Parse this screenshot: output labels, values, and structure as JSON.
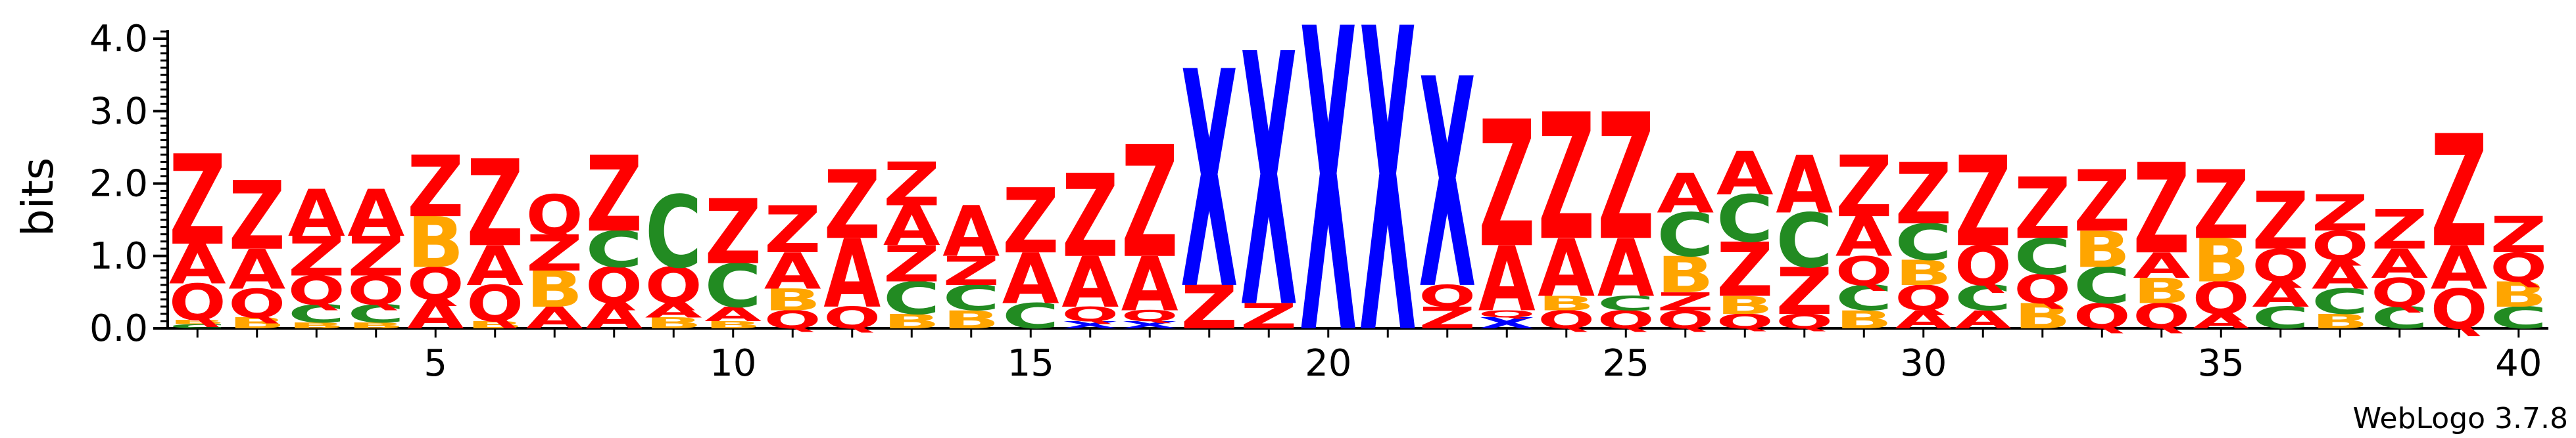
{
  "chart_data": {
    "type": "sequence-logo",
    "ylabel": "bits",
    "ylim": [
      0,
      4.1
    ],
    "yticks": [
      "0.0",
      "1.0",
      "2.0",
      "3.0",
      "4.0"
    ],
    "xticks": [
      "5",
      "10",
      "15",
      "20",
      "25",
      "30",
      "35",
      "40"
    ],
    "xlim": [
      1,
      40
    ],
    "grid": false,
    "colors": {
      "Z": "#ff0000",
      "A": "#ff0000",
      "Q": "#ff0000",
      "X": "#0000ff",
      "C": "#228b22",
      "B": "#ffa500"
    },
    "positions": [
      {
        "pos": 1,
        "stack": [
          [
            "C",
            0.06
          ],
          [
            "B",
            0.06
          ],
          [
            "Q",
            0.5
          ],
          [
            "A",
            0.55
          ],
          [
            "Z",
            1.25
          ]
        ]
      },
      {
        "pos": 2,
        "stack": [
          [
            "B",
            0.15
          ],
          [
            "Q",
            0.4
          ],
          [
            "A",
            0.55
          ],
          [
            "Z",
            0.95
          ]
        ]
      },
      {
        "pos": 3,
        "stack": [
          [
            "B",
            0.08
          ],
          [
            "C",
            0.25
          ],
          [
            "Q",
            0.4
          ],
          [
            "Z",
            0.55
          ],
          [
            "A",
            0.65
          ]
        ]
      },
      {
        "pos": 4,
        "stack": [
          [
            "B",
            0.08
          ],
          [
            "C",
            0.25
          ],
          [
            "Q",
            0.4
          ],
          [
            "Z",
            0.55
          ],
          [
            "A",
            0.65
          ]
        ]
      },
      {
        "pos": 5,
        "stack": [
          [
            "A",
            0.4
          ],
          [
            "Q",
            0.45
          ],
          [
            "B",
            0.7
          ],
          [
            "Z",
            0.85
          ]
        ]
      },
      {
        "pos": 6,
        "stack": [
          [
            "B",
            0.1
          ],
          [
            "Q",
            0.5
          ],
          [
            "A",
            0.55
          ],
          [
            "Z",
            1.2
          ]
        ]
      },
      {
        "pos": 7,
        "stack": [
          [
            "A",
            0.3
          ],
          [
            "B",
            0.5
          ],
          [
            "Z",
            0.5
          ],
          [
            "Q",
            0.55
          ]
        ]
      },
      {
        "pos": 8,
        "stack": [
          [
            "A",
            0.35
          ],
          [
            "Q",
            0.5
          ],
          [
            "C",
            0.5
          ],
          [
            "Z",
            1.05
          ]
        ]
      },
      {
        "pos": 9,
        "stack": [
          [
            "B",
            0.15
          ],
          [
            "A",
            0.2
          ],
          [
            "Q",
            0.5
          ],
          [
            "C",
            1.0
          ]
        ]
      },
      {
        "pos": 10,
        "stack": [
          [
            "B",
            0.1
          ],
          [
            "A",
            0.2
          ],
          [
            "C",
            0.6
          ],
          [
            "Z",
            0.9
          ]
        ]
      },
      {
        "pos": 11,
        "stack": [
          [
            "Q",
            0.25
          ],
          [
            "B",
            0.3
          ],
          [
            "A",
            0.5
          ],
          [
            "Z",
            0.65
          ]
        ]
      },
      {
        "pos": 12,
        "stack": [
          [
            "Q",
            0.3
          ],
          [
            "A",
            0.95
          ],
          [
            "Z",
            0.95
          ]
        ]
      },
      {
        "pos": 13,
        "stack": [
          [
            "B",
            0.2
          ],
          [
            "C",
            0.45
          ],
          [
            "Z",
            0.5
          ],
          [
            "A",
            0.55
          ],
          [
            "Z",
            0.6
          ]
        ]
      },
      {
        "pos": 14,
        "stack": [
          [
            "B",
            0.25
          ],
          [
            "C",
            0.35
          ],
          [
            "Z",
            0.4
          ],
          [
            "A",
            0.7
          ]
        ]
      },
      {
        "pos": 15,
        "stack": [
          [
            "C",
            0.35
          ],
          [
            "A",
            0.7
          ],
          [
            "Z",
            0.9
          ]
        ]
      },
      {
        "pos": 16,
        "stack": [
          [
            "X",
            0.1
          ],
          [
            "Q",
            0.2
          ],
          [
            "A",
            0.7
          ],
          [
            "Z",
            1.15
          ]
        ]
      },
      {
        "pos": 17,
        "stack": [
          [
            "X",
            0.1
          ],
          [
            "Q",
            0.15
          ],
          [
            "A",
            0.75
          ],
          [
            "Z",
            1.55
          ]
        ]
      },
      {
        "pos": 18,
        "stack": [
          [
            "Z",
            0.6
          ],
          [
            "X",
            3.0
          ]
        ]
      },
      {
        "pos": 19,
        "stack": [
          [
            "Z",
            0.35
          ],
          [
            "X",
            3.5
          ]
        ]
      },
      {
        "pos": 20,
        "stack": [
          [
            "X",
            4.2
          ]
        ]
      },
      {
        "pos": 21,
        "stack": [
          [
            "X",
            4.2
          ]
        ]
      },
      {
        "pos": 22,
        "stack": [
          [
            "Z",
            0.3
          ],
          [
            "Q",
            0.3
          ],
          [
            "X",
            2.9
          ]
        ]
      },
      {
        "pos": 23,
        "stack": [
          [
            "X",
            0.15
          ],
          [
            "Q",
            0.1
          ],
          [
            "A",
            0.9
          ],
          [
            "Z",
            1.75
          ]
        ]
      },
      {
        "pos": 24,
        "stack": [
          [
            "Q",
            0.25
          ],
          [
            "B",
            0.2
          ],
          [
            "A",
            0.8
          ],
          [
            "Z",
            1.75
          ]
        ]
      },
      {
        "pos": 25,
        "stack": [
          [
            "Q",
            0.25
          ],
          [
            "C",
            0.2
          ],
          [
            "A",
            0.8
          ],
          [
            "Z",
            1.75
          ]
        ]
      },
      {
        "pos": 26,
        "stack": [
          [
            "Q",
            0.25
          ],
          [
            "Z",
            0.25
          ],
          [
            "B",
            0.5
          ],
          [
            "C",
            0.6
          ],
          [
            "A",
            0.55
          ]
        ]
      },
      {
        "pos": 27,
        "stack": [
          [
            "Q",
            0.2
          ],
          [
            "B",
            0.25
          ],
          [
            "Z",
            0.75
          ],
          [
            "C",
            0.65
          ],
          [
            "A",
            0.6
          ]
        ]
      },
      {
        "pos": 28,
        "stack": [
          [
            "Q",
            0.2
          ],
          [
            "Z",
            0.65
          ],
          [
            "C",
            0.75
          ],
          [
            "A",
            0.8
          ]
        ]
      },
      {
        "pos": 29,
        "stack": [
          [
            "B",
            0.25
          ],
          [
            "C",
            0.35
          ],
          [
            "Q",
            0.4
          ],
          [
            "A",
            0.55
          ],
          [
            "Z",
            0.85
          ]
        ]
      },
      {
        "pos": 30,
        "stack": [
          [
            "A",
            0.25
          ],
          [
            "Q",
            0.35
          ],
          [
            "B",
            0.35
          ],
          [
            "C",
            0.5
          ],
          [
            "Z",
            0.85
          ]
        ]
      },
      {
        "pos": 31,
        "stack": [
          [
            "A",
            0.25
          ],
          [
            "C",
            0.35
          ],
          [
            "Q",
            0.55
          ],
          [
            "Z",
            1.25
          ]
        ]
      },
      {
        "pos": 32,
        "stack": [
          [
            "B",
            0.35
          ],
          [
            "Q",
            0.4
          ],
          [
            "C",
            0.5
          ],
          [
            "Z",
            0.85
          ]
        ]
      },
      {
        "pos": 33,
        "stack": [
          [
            "Q",
            0.35
          ],
          [
            "C",
            0.5
          ],
          [
            "B",
            0.5
          ],
          [
            "Z",
            0.85
          ]
        ]
      },
      {
        "pos": 34,
        "stack": [
          [
            "Q",
            0.35
          ],
          [
            "B",
            0.35
          ],
          [
            "A",
            0.35
          ],
          [
            "Z",
            1.25
          ]
        ]
      },
      {
        "pos": 35,
        "stack": [
          [
            "A",
            0.2
          ],
          [
            "Q",
            0.45
          ],
          [
            "B",
            0.6
          ],
          [
            "Z",
            0.95
          ]
        ]
      },
      {
        "pos": 36,
        "stack": [
          [
            "C",
            0.3
          ],
          [
            "A",
            0.35
          ],
          [
            "Q",
            0.45
          ],
          [
            "Z",
            0.8
          ]
        ]
      },
      {
        "pos": 37,
        "stack": [
          [
            "B",
            0.2
          ],
          [
            "C",
            0.35
          ],
          [
            "A",
            0.4
          ],
          [
            "Q",
            0.4
          ],
          [
            "Z",
            0.5
          ]
        ]
      },
      {
        "pos": 38,
        "stack": [
          [
            "C",
            0.3
          ],
          [
            "Q",
            0.4
          ],
          [
            "A",
            0.4
          ],
          [
            "Z",
            0.55
          ]
        ]
      },
      {
        "pos": 39,
        "stack": [
          [
            "Q",
            0.55
          ],
          [
            "A",
            0.6
          ],
          [
            "Z",
            1.55
          ]
        ]
      },
      {
        "pos": 40,
        "stack": [
          [
            "C",
            0.3
          ],
          [
            "B",
            0.35
          ],
          [
            "Q",
            0.4
          ],
          [
            "Z",
            0.5
          ]
        ]
      }
    ]
  },
  "credit": "WebLogo 3.7.8"
}
